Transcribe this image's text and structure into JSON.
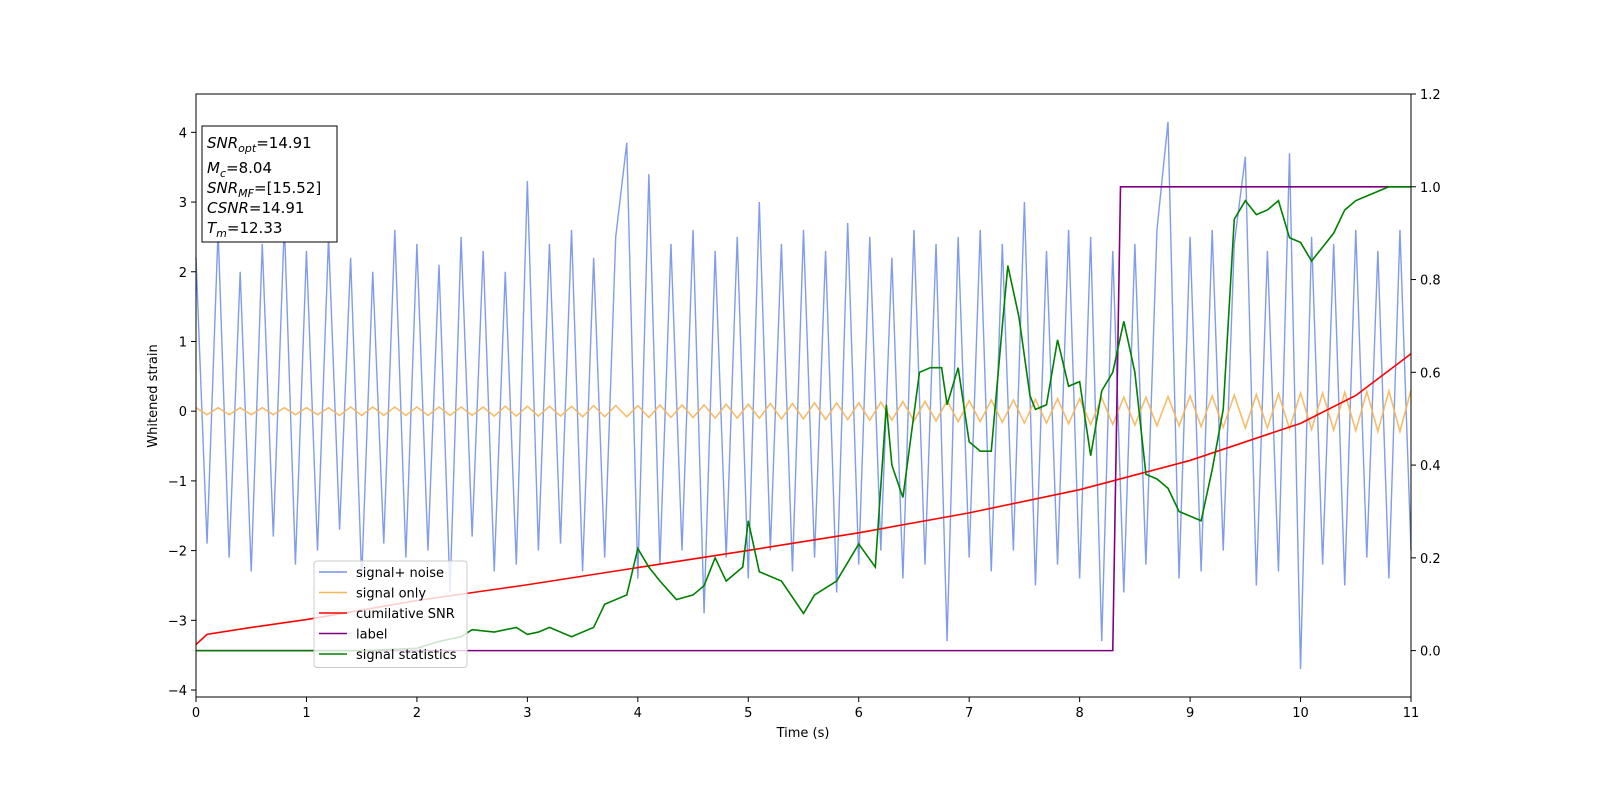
{
  "chart_data": {
    "type": "line",
    "xlabel": "Time (s)",
    "ylabel": "Whitened strain",
    "xlim": [
      0,
      11
    ],
    "ylim": [
      -4.1,
      4.55
    ],
    "y2lim": [
      -0.1,
      1.2
    ],
    "xticks": [
      0,
      1,
      2,
      3,
      4,
      5,
      6,
      7,
      8,
      9,
      10,
      11
    ],
    "yticks": [
      {
        "value": -4,
        "label": "−4"
      },
      {
        "value": -3,
        "label": "−3"
      },
      {
        "value": -2,
        "label": "−2"
      },
      {
        "value": -1,
        "label": "−1"
      },
      0,
      1,
      2,
      3,
      4
    ],
    "y2ticks": [
      {
        "value": 0,
        "label": "0.0"
      },
      0.2,
      0.4,
      0.6,
      0.8,
      {
        "value": 1,
        "label": "1.0"
      },
      1.2
    ],
    "legend": "lower left",
    "x": [
      0,
      0.1,
      0.2,
      0.3,
      0.4,
      0.5,
      0.6,
      0.7,
      0.8,
      0.9,
      1,
      1.1,
      1.2,
      1.3,
      1.4,
      1.5,
      1.6,
      1.7,
      1.8,
      1.9,
      2,
      2.1,
      2.2,
      2.3,
      2.4,
      2.5,
      2.6,
      2.7,
      2.8,
      2.9,
      3,
      3.1,
      3.2,
      3.3,
      3.4,
      3.5,
      3.6,
      3.7,
      3.8,
      3.9,
      4,
      4.1,
      4.2,
      4.3,
      4.4,
      4.5,
      4.6,
      4.7,
      4.8,
      4.9,
      5,
      5.1,
      5.2,
      5.3,
      5.4,
      5.5,
      5.6,
      5.7,
      5.8,
      5.9,
      6,
      6.1,
      6.2,
      6.3,
      6.4,
      6.5,
      6.6,
      6.7,
      6.8,
      6.9,
      7,
      7.1,
      7.2,
      7.3,
      7.4,
      7.5,
      7.6,
      7.7,
      7.8,
      7.9,
      8,
      8.1,
      8.2,
      8.3,
      8.4,
      8.5,
      8.6,
      8.7,
      8.8,
      8.9,
      9,
      9.1,
      9.2,
      9.3,
      9.4,
      9.5,
      9.6,
      9.7,
      9.8,
      9.9,
      10,
      10.1,
      10.2,
      10.3,
      10.4,
      10.5,
      10.6,
      10.7,
      10.8,
      10.9,
      11
    ],
    "series": [
      {
        "name": "signal+ noise",
        "color": "#7391e6",
        "values": [
          2.2,
          -1.9,
          2.6,
          -2.1,
          2.0,
          -2.3,
          2.4,
          -1.8,
          2.7,
          -2.2,
          2.3,
          -2.0,
          2.5,
          -1.7,
          2.2,
          -2.4,
          2.0,
          -1.9,
          2.6,
          -2.1,
          2.4,
          -2.0,
          2.1,
          -2.6,
          2.5,
          -1.8,
          2.3,
          -2.3,
          2.0,
          -2.2,
          3.3,
          -2.0,
          2.4,
          -1.9,
          2.6,
          -2.3,
          2.2,
          -2.1,
          2.5,
          3.85,
          -2.4,
          3.4,
          -2.2,
          2.4,
          -2.0,
          2.6,
          -2.9,
          2.3,
          -2.1,
          2.5,
          -2.4,
          3.0,
          -2.0,
          2.4,
          -2.3,
          2.6,
          -2.1,
          2.3,
          -2.6,
          2.7,
          -2.2,
          2.5,
          -2.0,
          2.2,
          -2.4,
          2.6,
          -2.2,
          2.4,
          -3.3,
          2.5,
          -2.1,
          2.6,
          -2.3,
          2.4,
          -2.0,
          3.0,
          -2.5,
          2.3,
          -2.2,
          2.6,
          -2.4,
          2.5,
          -3.3,
          2.3,
          -2.6,
          2.4,
          -2.2,
          2.6,
          4.15,
          -2.4,
          2.5,
          -2.3,
          2.6,
          -2.0,
          2.4,
          3.65,
          -2.5,
          2.3,
          -2.3,
          3.7,
          -3.7,
          2.5,
          -2.2,
          2.4,
          -2.5,
          2.6,
          -2.1,
          2.3,
          -2.4,
          2.6,
          -2.0
        ]
      },
      {
        "name": "signal only",
        "color": "#f5b65a",
        "values": [
          0.05,
          -0.05,
          0.05,
          -0.05,
          0.05,
          -0.05,
          0.05,
          -0.05,
          0.05,
          -0.05,
          0.05,
          -0.05,
          0.05,
          -0.06,
          0.06,
          -0.06,
          0.06,
          -0.06,
          0.06,
          -0.06,
          0.06,
          -0.06,
          0.06,
          -0.06,
          0.06,
          -0.06,
          0.06,
          -0.07,
          0.07,
          -0.07,
          0.07,
          -0.07,
          0.07,
          -0.07,
          0.07,
          -0.08,
          0.08,
          -0.08,
          0.08,
          -0.08,
          0.08,
          -0.09,
          0.09,
          -0.09,
          0.09,
          -0.09,
          0.09,
          -0.1,
          0.1,
          -0.1,
          0.1,
          -0.1,
          0.11,
          -0.11,
          0.11,
          -0.11,
          0.12,
          -0.12,
          0.12,
          -0.12,
          0.12,
          -0.13,
          0.13,
          -0.13,
          0.14,
          -0.14,
          0.14,
          -0.14,
          0.15,
          -0.15,
          0.15,
          -0.15,
          0.16,
          -0.16,
          0.16,
          -0.17,
          0.17,
          -0.17,
          0.18,
          -0.18,
          0.18,
          -0.19,
          0.19,
          -0.19,
          0.2,
          -0.2,
          0.2,
          -0.21,
          0.21,
          -0.21,
          0.22,
          -0.22,
          0.22,
          -0.23,
          0.23,
          -0.24,
          0.24,
          -0.24,
          0.25,
          -0.25,
          0.26,
          -0.26,
          0.26,
          -0.27,
          0.27,
          -0.28,
          0.28,
          -0.29,
          0.29,
          -0.29,
          0.3
        ]
      },
      {
        "name": "cumilative SNR",
        "color": "#ff0000",
        "axis": "y2",
        "x": [
          0,
          0.1,
          0.5,
          1,
          2,
          3,
          4,
          5,
          6,
          7,
          8,
          9,
          10,
          10.5,
          11
        ],
        "values": [
          0.013,
          0.035,
          0.05,
          0.067,
          0.108,
          0.142,
          0.179,
          0.216,
          0.254,
          0.297,
          0.347,
          0.41,
          0.49,
          0.55,
          0.64
        ]
      },
      {
        "name": "label",
        "color": "#800080",
        "axis": "y2",
        "x": [
          0,
          8.3,
          8.37,
          11
        ],
        "values": [
          0,
          0,
          1,
          1
        ]
      },
      {
        "name": "signal statistics",
        "color": "#008000",
        "axis": "y2",
        "x": [
          0,
          1.5,
          2,
          2.2,
          2.4,
          2.5,
          2.7,
          2.9,
          3,
          3.1,
          3.2,
          3.4,
          3.6,
          3.7,
          3.9,
          4,
          4.1,
          4.2,
          4.35,
          4.5,
          4.6,
          4.7,
          4.8,
          4.95,
          5,
          5.1,
          5.3,
          5.5,
          5.6,
          5.8,
          6,
          6.15,
          6.25,
          6.3,
          6.4,
          6.55,
          6.65,
          6.75,
          6.8,
          6.9,
          7,
          7.1,
          7.2,
          7.3,
          7.35,
          7.45,
          7.55,
          7.6,
          7.7,
          7.8,
          7.9,
          8,
          8.1,
          8.2,
          8.3,
          8.4,
          8.5,
          8.6,
          8.7,
          8.8,
          8.9,
          9,
          9.1,
          9.2,
          9.3,
          9.4,
          9.5,
          9.6,
          9.7,
          9.8,
          9.9,
          10,
          10.1,
          10.2,
          10.3,
          10.4,
          10.5,
          10.6,
          10.7,
          10.8,
          11
        ],
        "values": [
          0,
          0,
          0.005,
          0.02,
          0.03,
          0.045,
          0.04,
          0.05,
          0.035,
          0.04,
          0.05,
          0.03,
          0.05,
          0.1,
          0.12,
          0.22,
          0.18,
          0.15,
          0.11,
          0.12,
          0.14,
          0.2,
          0.15,
          0.18,
          0.28,
          0.17,
          0.15,
          0.08,
          0.12,
          0.15,
          0.23,
          0.18,
          0.53,
          0.4,
          0.33,
          0.6,
          0.61,
          0.61,
          0.53,
          0.61,
          0.45,
          0.43,
          0.43,
          0.7,
          0.83,
          0.72,
          0.55,
          0.52,
          0.53,
          0.67,
          0.57,
          0.58,
          0.42,
          0.56,
          0.6,
          0.71,
          0.6,
          0.38,
          0.37,
          0.35,
          0.3,
          0.29,
          0.28,
          0.39,
          0.52,
          0.93,
          0.97,
          0.94,
          0.95,
          0.97,
          0.89,
          0.88,
          0.84,
          0.87,
          0.9,
          0.95,
          0.97,
          0.98,
          0.99,
          1.0,
          1.0
        ]
      }
    ],
    "annotation": [
      {
        "base": "SNR",
        "sub": "opt",
        "rest": "=14.91"
      },
      {
        "base": "M",
        "sub": "c",
        "rest": "=8.04"
      },
      {
        "base": "SNR",
        "sub": "MF",
        "rest": "=[15.52]"
      },
      {
        "base": "CSNR",
        "rest": "=14.91"
      },
      {
        "base": "T",
        "sub": "m",
        "rest": "=12.33"
      }
    ]
  }
}
